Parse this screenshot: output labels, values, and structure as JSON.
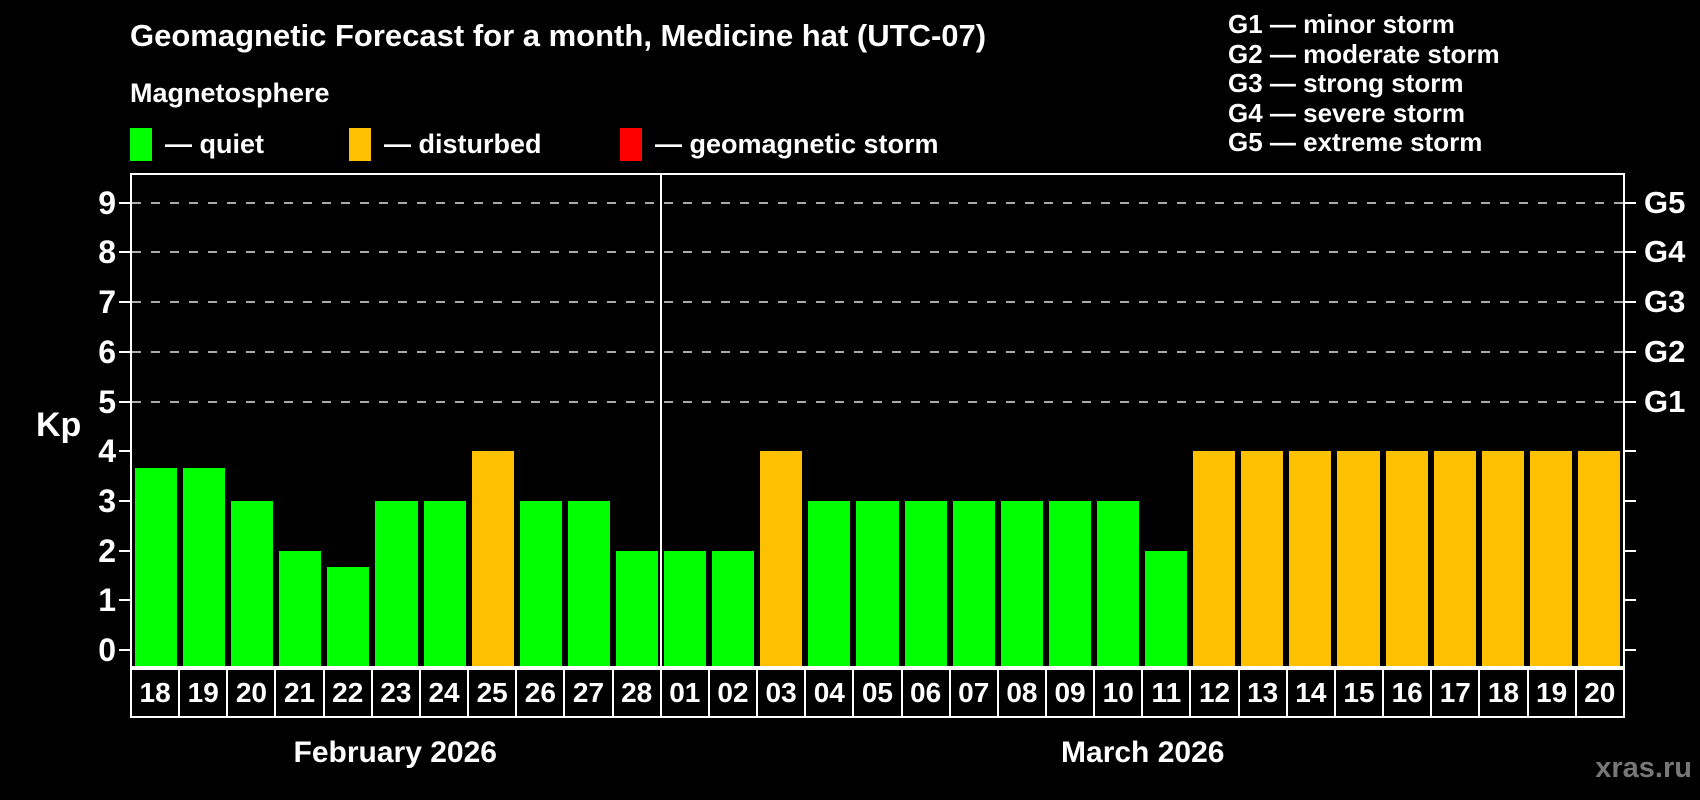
{
  "title": "Geomagnetic Forecast for a month, Medicine hat (UTC-07)",
  "subtitle": "Magnetosphere",
  "legend": {
    "items": [
      {
        "name": "quiet",
        "label": "— quiet",
        "color": "#00ff00"
      },
      {
        "name": "disturbed",
        "label": "— disturbed",
        "color": "#ffc000"
      },
      {
        "name": "storm",
        "label": "— geomagnetic storm",
        "color": "#ff0000"
      }
    ]
  },
  "g_legend": {
    "lines": [
      "G1 — minor storm",
      "G2 — moderate storm",
      "G3 — strong storm",
      "G4 — severe storm",
      "G5 — extreme storm"
    ]
  },
  "watermark": "xras.ru",
  "chart_data": {
    "type": "bar",
    "title": "Geomagnetic Forecast for a month, Medicine hat (UTC-07)",
    "ylabel": "Kp",
    "ylim": [
      0,
      9.4
    ],
    "y_ticks": [
      0,
      1,
      2,
      3,
      4,
      5,
      6,
      7,
      8,
      9
    ],
    "gridlines_at": [
      5,
      6,
      7,
      8,
      9
    ],
    "grid": "dashed, only at G-storm levels Kp 5-9",
    "legend_position": "top-left",
    "right_axis_labels": [
      {
        "kp": 5,
        "label": "G1"
      },
      {
        "kp": 6,
        "label": "G2"
      },
      {
        "kp": 7,
        "label": "G3"
      },
      {
        "kp": 8,
        "label": "G4"
      },
      {
        "kp": 9,
        "label": "G5"
      }
    ],
    "status_colors": {
      "quiet": "#00ff00",
      "disturbed": "#ffc000",
      "storm": "#ff0000"
    },
    "months": [
      {
        "label": "February 2026",
        "days": [
          {
            "day": "18",
            "kp": 3.67,
            "status": "quiet"
          },
          {
            "day": "19",
            "kp": 3.67,
            "status": "quiet"
          },
          {
            "day": "20",
            "kp": 3,
            "status": "quiet"
          },
          {
            "day": "21",
            "kp": 2,
            "status": "quiet"
          },
          {
            "day": "22",
            "kp": 1.67,
            "status": "quiet"
          },
          {
            "day": "23",
            "kp": 3,
            "status": "quiet"
          },
          {
            "day": "24",
            "kp": 3,
            "status": "quiet"
          },
          {
            "day": "25",
            "kp": 4,
            "status": "disturbed"
          },
          {
            "day": "26",
            "kp": 3,
            "status": "quiet"
          },
          {
            "day": "27",
            "kp": 3,
            "status": "quiet"
          },
          {
            "day": "28",
            "kp": 2,
            "status": "quiet"
          }
        ]
      },
      {
        "label": "March 2026",
        "days": [
          {
            "day": "01",
            "kp": 2,
            "status": "quiet"
          },
          {
            "day": "02",
            "kp": 2,
            "status": "quiet"
          },
          {
            "day": "03",
            "kp": 4,
            "status": "disturbed"
          },
          {
            "day": "04",
            "kp": 3,
            "status": "quiet"
          },
          {
            "day": "05",
            "kp": 3,
            "status": "quiet"
          },
          {
            "day": "06",
            "kp": 3,
            "status": "quiet"
          },
          {
            "day": "07",
            "kp": 3,
            "status": "quiet"
          },
          {
            "day": "08",
            "kp": 3,
            "status": "quiet"
          },
          {
            "day": "09",
            "kp": 3,
            "status": "quiet"
          },
          {
            "day": "10",
            "kp": 3,
            "status": "quiet"
          },
          {
            "day": "11",
            "kp": 2,
            "status": "quiet"
          },
          {
            "day": "12",
            "kp": 4,
            "status": "disturbed"
          },
          {
            "day": "13",
            "kp": 4,
            "status": "disturbed"
          },
          {
            "day": "14",
            "kp": 4,
            "status": "disturbed"
          },
          {
            "day": "15",
            "kp": 4,
            "status": "disturbed"
          },
          {
            "day": "16",
            "kp": 4,
            "status": "disturbed"
          },
          {
            "day": "17",
            "kp": 4,
            "status": "disturbed"
          },
          {
            "day": "18",
            "kp": 4,
            "status": "disturbed"
          },
          {
            "day": "19",
            "kp": 4,
            "status": "disturbed"
          },
          {
            "day": "20",
            "kp": 4,
            "status": "disturbed"
          }
        ]
      }
    ]
  }
}
